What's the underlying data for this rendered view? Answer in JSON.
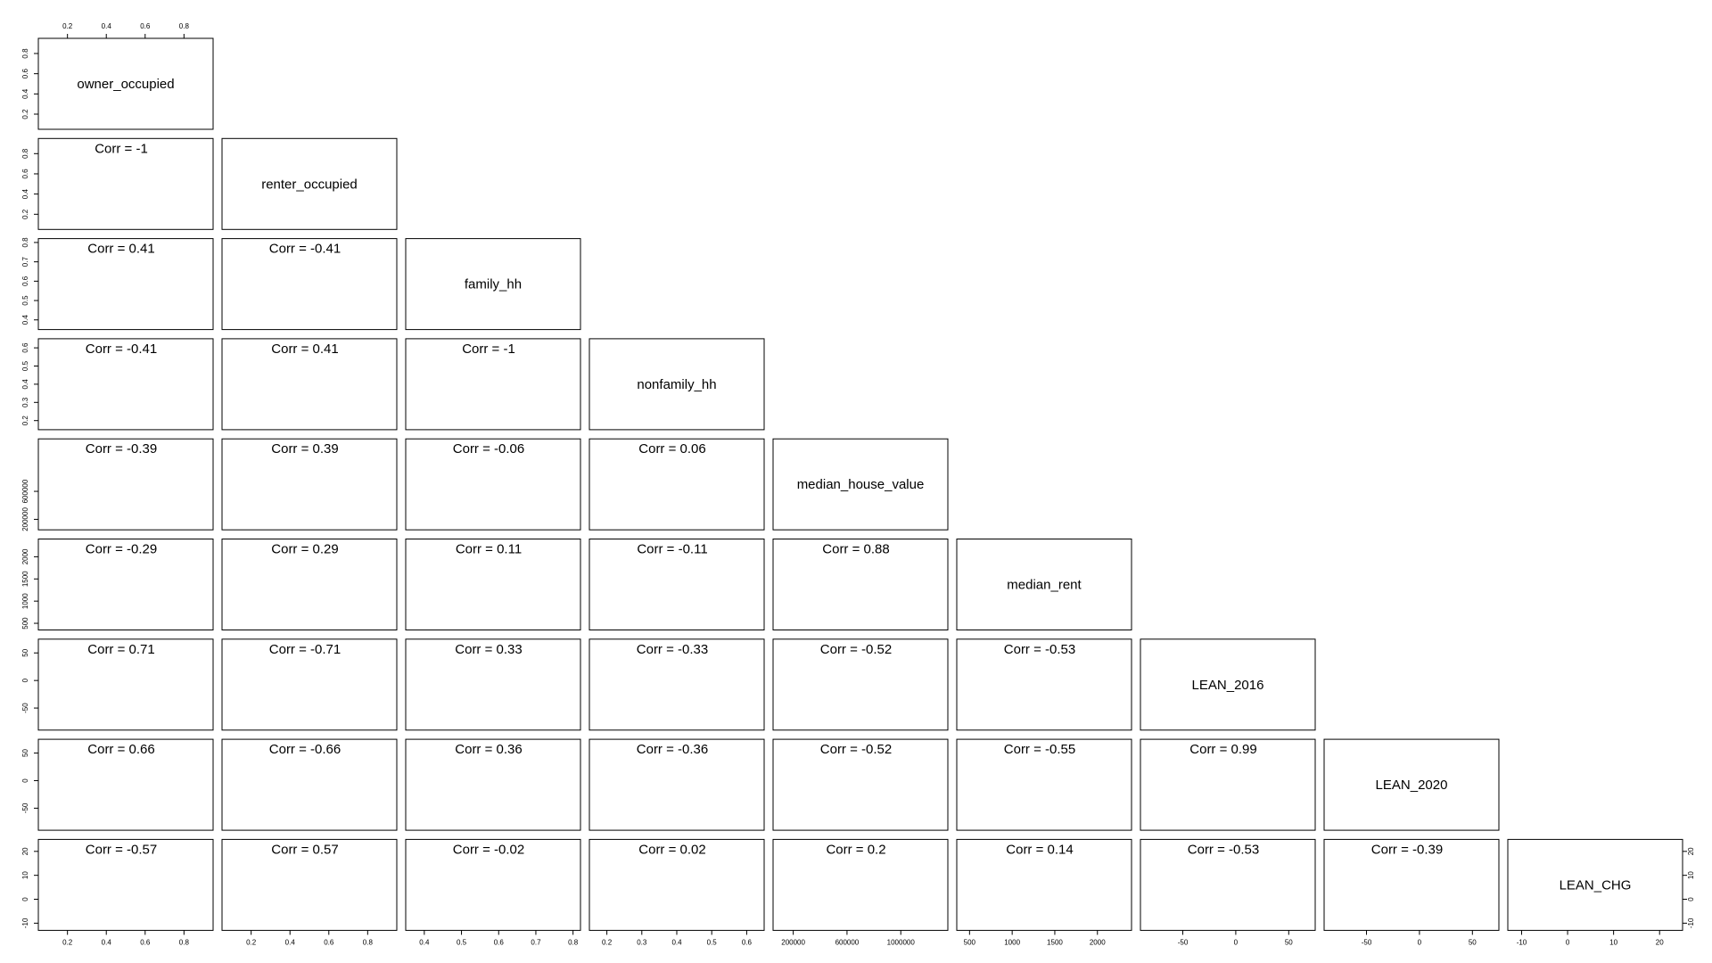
{
  "chart_data": {
    "type": "scatter",
    "variables": [
      "owner_occupied",
      "renter_occupied",
      "family_hh",
      "nonfamily_hh",
      "median_house_value",
      "median_rent",
      "LEAN_2016",
      "LEAN_2020",
      "LEAN_CHG"
    ],
    "colors": {
      "negative_lean": "#add8e6",
      "positive_lean": "#f08080",
      "panel_border": "#000000"
    },
    "corr_prefix": "Corr = ",
    "correlations": [
      {
        "row": 1,
        "col": 0,
        "value": "-1"
      },
      {
        "row": 2,
        "col": 0,
        "value": "0.41"
      },
      {
        "row": 2,
        "col": 1,
        "value": "-0.41"
      },
      {
        "row": 3,
        "col": 0,
        "value": "-0.41"
      },
      {
        "row": 3,
        "col": 1,
        "value": "0.41"
      },
      {
        "row": 3,
        "col": 2,
        "value": "-1"
      },
      {
        "row": 4,
        "col": 0,
        "value": "-0.39"
      },
      {
        "row": 4,
        "col": 1,
        "value": "0.39"
      },
      {
        "row": 4,
        "col": 2,
        "value": "-0.06"
      },
      {
        "row": 4,
        "col": 3,
        "value": "0.06"
      },
      {
        "row": 5,
        "col": 0,
        "value": "-0.29"
      },
      {
        "row": 5,
        "col": 1,
        "value": "0.29"
      },
      {
        "row": 5,
        "col": 2,
        "value": "0.11"
      },
      {
        "row": 5,
        "col": 3,
        "value": "-0.11"
      },
      {
        "row": 5,
        "col": 4,
        "value": "0.88"
      },
      {
        "row": 6,
        "col": 0,
        "value": "0.71"
      },
      {
        "row": 6,
        "col": 1,
        "value": "-0.71"
      },
      {
        "row": 6,
        "col": 2,
        "value": "0.33"
      },
      {
        "row": 6,
        "col": 3,
        "value": "-0.33"
      },
      {
        "row": 6,
        "col": 4,
        "value": "-0.52"
      },
      {
        "row": 6,
        "col": 5,
        "value": "-0.53"
      },
      {
        "row": 7,
        "col": 0,
        "value": "0.66"
      },
      {
        "row": 7,
        "col": 1,
        "value": "-0.66"
      },
      {
        "row": 7,
        "col": 2,
        "value": "0.36"
      },
      {
        "row": 7,
        "col": 3,
        "value": "-0.36"
      },
      {
        "row": 7,
        "col": 4,
        "value": "-0.52"
      },
      {
        "row": 7,
        "col": 5,
        "value": "-0.55"
      },
      {
        "row": 7,
        "col": 6,
        "value": "0.99"
      },
      {
        "row": 8,
        "col": 0,
        "value": "-0.57"
      },
      {
        "row": 8,
        "col": 1,
        "value": "0.57"
      },
      {
        "row": 8,
        "col": 2,
        "value": "-0.02"
      },
      {
        "row": 8,
        "col": 3,
        "value": "0.02"
      },
      {
        "row": 8,
        "col": 4,
        "value": "0.2"
      },
      {
        "row": 8,
        "col": 5,
        "value": "0.14"
      },
      {
        "row": 8,
        "col": 6,
        "value": "-0.53"
      },
      {
        "row": 8,
        "col": 7,
        "value": "-0.39"
      }
    ],
    "top_axis_ticks": [
      "0.2",
      "0.4",
      "0.6",
      "0.8"
    ],
    "left_axis_ticks": [
      [
        "0.2",
        "0.4",
        "0.6",
        "0.8"
      ],
      [
        "0.2",
        "0.4",
        "0.6",
        "0.8"
      ],
      [
        "0.4",
        "0.5",
        "0.6",
        "0.7",
        "0.8"
      ],
      [
        "0.2",
        "0.3",
        "0.4",
        "0.5",
        "0.6"
      ],
      [
        "200000",
        "600000"
      ],
      [
        "500",
        "1000",
        "1500",
        "2000"
      ],
      [
        "-50",
        "0",
        "50"
      ],
      [
        "-50",
        "0",
        "50"
      ],
      [
        "-10",
        "0",
        "10",
        "20"
      ]
    ],
    "right_axis_ticks": [
      "-10",
      "0",
      "10",
      "20"
    ],
    "bottom_axis_ticks": [
      [
        "0.2",
        "0.4",
        "0.6",
        "0.8"
      ],
      [
        "0.2",
        "0.4",
        "0.6",
        "0.8"
      ],
      [
        "0.4",
        "0.5",
        "0.6",
        "0.7",
        "0.8"
      ],
      [
        "0.2",
        "0.3",
        "0.4",
        "0.5",
        "0.6"
      ],
      [
        "200000",
        "600000",
        "1000000"
      ],
      [
        "500",
        "1000",
        "1500",
        "2000"
      ],
      [
        "-50",
        "0",
        "50"
      ],
      [
        "-50",
        "0",
        "50"
      ],
      [
        "-10",
        "0",
        "10",
        "20"
      ]
    ],
    "ranges": {
      "owner_occupied": [
        0.05,
        0.95
      ],
      "renter_occupied": [
        0.05,
        0.95
      ],
      "family_hh": [
        0.35,
        0.82
      ],
      "nonfamily_hh": [
        0.15,
        0.65
      ],
      "median_house_value": [
        50000,
        1350000
      ],
      "median_rent": [
        350,
        2400
      ],
      "LEAN_2016": [
        -90,
        75
      ],
      "LEAN_2020": [
        -90,
        75
      ],
      "LEAN_CHG": [
        -13,
        25
      ]
    }
  }
}
